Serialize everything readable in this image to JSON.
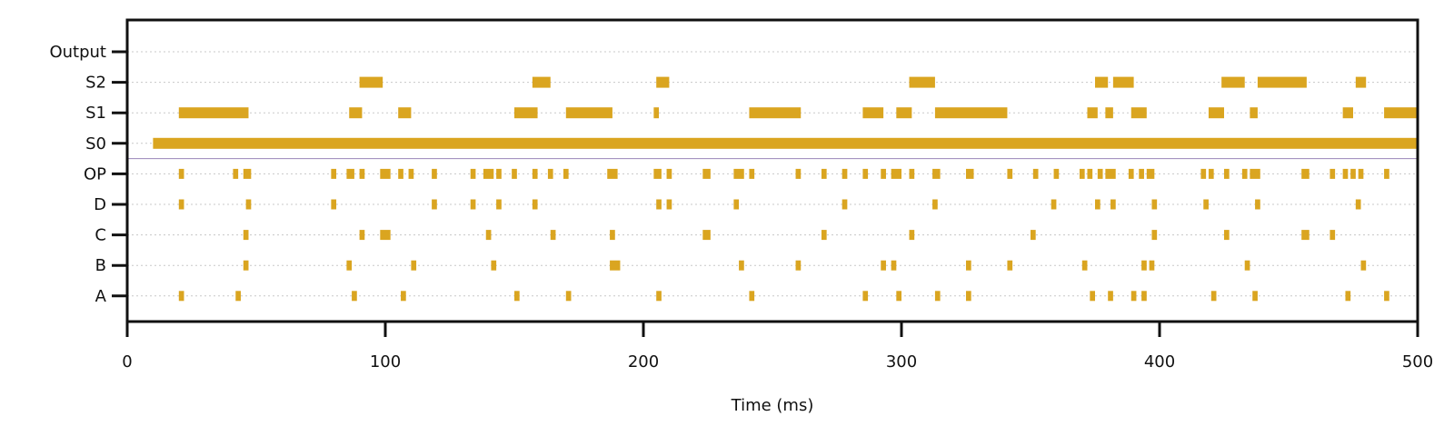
{
  "chart_data": {
    "type": "raster",
    "xlabel": "Time (ms)",
    "ylabel": "",
    "xlim": [
      0,
      500
    ],
    "xticks": [
      0,
      100,
      200,
      300,
      400,
      500
    ],
    "rows": [
      "A",
      "B",
      "C",
      "D",
      "OP",
      "S0",
      "S1",
      "S2",
      "Output"
    ],
    "grid": "dotted horizontal per row",
    "separator_after_row": "OP",
    "color": "#DAA520",
    "series": [
      {
        "name": "A",
        "intervals": [
          [
            20,
            22
          ],
          [
            42,
            44
          ],
          [
            87,
            89
          ],
          [
            106,
            108
          ],
          [
            150,
            152
          ],
          [
            170,
            172
          ],
          [
            205,
            207
          ],
          [
            241,
            243
          ],
          [
            285,
            287
          ],
          [
            298,
            300
          ],
          [
            313,
            315
          ],
          [
            325,
            327
          ],
          [
            373,
            375
          ],
          [
            380,
            382
          ],
          [
            389,
            391
          ],
          [
            393,
            395
          ],
          [
            420,
            422
          ],
          [
            436,
            438
          ],
          [
            472,
            474
          ],
          [
            487,
            489
          ]
        ]
      },
      {
        "name": "B",
        "intervals": [
          [
            45,
            47
          ],
          [
            85,
            87
          ],
          [
            110,
            112
          ],
          [
            141,
            143
          ],
          [
            187,
            191
          ],
          [
            237,
            239
          ],
          [
            259,
            261
          ],
          [
            292,
            294
          ],
          [
            296,
            298
          ],
          [
            325,
            327
          ],
          [
            341,
            343
          ],
          [
            370,
            372
          ],
          [
            393,
            395
          ],
          [
            396,
            398
          ],
          [
            433,
            435
          ],
          [
            478,
            480
          ]
        ]
      },
      {
        "name": "C",
        "intervals": [
          [
            45,
            47
          ],
          [
            90,
            92
          ],
          [
            98,
            102
          ],
          [
            139,
            141
          ],
          [
            164,
            166
          ],
          [
            187,
            189
          ],
          [
            223,
            226
          ],
          [
            269,
            271
          ],
          [
            303,
            305
          ],
          [
            350,
            352
          ],
          [
            397,
            399
          ],
          [
            425,
            427
          ],
          [
            455,
            458
          ],
          [
            466,
            468
          ]
        ]
      },
      {
        "name": "D",
        "intervals": [
          [
            20,
            22
          ],
          [
            46,
            48
          ],
          [
            79,
            81
          ],
          [
            118,
            120
          ],
          [
            133,
            135
          ],
          [
            143,
            145
          ],
          [
            157,
            159
          ],
          [
            205,
            207
          ],
          [
            209,
            211
          ],
          [
            235,
            237
          ],
          [
            277,
            279
          ],
          [
            312,
            314
          ],
          [
            358,
            360
          ],
          [
            375,
            377
          ],
          [
            381,
            383
          ],
          [
            397,
            399
          ],
          [
            417,
            419
          ],
          [
            437,
            439
          ],
          [
            476,
            478
          ]
        ]
      },
      {
        "name": "OP",
        "intervals": [
          [
            20,
            22
          ],
          [
            41,
            43
          ],
          [
            45,
            48
          ],
          [
            79,
            81
          ],
          [
            85,
            88
          ],
          [
            90,
            92
          ],
          [
            98,
            102
          ],
          [
            105,
            107
          ],
          [
            109,
            111
          ],
          [
            118,
            120
          ],
          [
            133,
            135
          ],
          [
            138,
            142
          ],
          [
            143,
            145
          ],
          [
            149,
            151
          ],
          [
            157,
            159
          ],
          [
            163,
            165
          ],
          [
            169,
            171
          ],
          [
            186,
            190
          ],
          [
            204,
            207
          ],
          [
            209,
            211
          ],
          [
            223,
            226
          ],
          [
            235,
            239
          ],
          [
            241,
            243
          ],
          [
            259,
            261
          ],
          [
            269,
            271
          ],
          [
            277,
            279
          ],
          [
            285,
            287
          ],
          [
            292,
            294
          ],
          [
            296,
            300
          ],
          [
            303,
            305
          ],
          [
            312,
            315
          ],
          [
            325,
            328
          ],
          [
            341,
            343
          ],
          [
            351,
            353
          ],
          [
            359,
            361
          ],
          [
            369,
            371
          ],
          [
            372,
            374
          ],
          [
            376,
            378
          ],
          [
            379,
            383
          ],
          [
            388,
            390
          ],
          [
            392,
            394
          ],
          [
            395,
            398
          ],
          [
            416,
            418
          ],
          [
            419,
            421
          ],
          [
            425,
            427
          ],
          [
            432,
            434
          ],
          [
            435,
            439
          ],
          [
            455,
            458
          ],
          [
            466,
            468
          ],
          [
            471,
            473
          ],
          [
            474,
            476
          ],
          [
            477,
            479
          ],
          [
            487,
            489
          ]
        ]
      },
      {
        "name": "S0",
        "intervals": [
          [
            10,
            500
          ]
        ]
      },
      {
        "name": "S1",
        "intervals": [
          [
            20,
            47
          ],
          [
            86,
            91
          ],
          [
            105,
            110
          ],
          [
            150,
            159
          ],
          [
            170,
            188
          ],
          [
            204,
            206
          ],
          [
            241,
            261
          ],
          [
            285,
            293
          ],
          [
            298,
            304
          ],
          [
            313,
            341
          ],
          [
            372,
            376
          ],
          [
            379,
            382
          ],
          [
            389,
            395
          ],
          [
            419,
            425
          ],
          [
            435,
            438
          ],
          [
            471,
            475
          ],
          [
            487,
            500
          ]
        ]
      },
      {
        "name": "S2",
        "intervals": [
          [
            90,
            99
          ],
          [
            157,
            164
          ],
          [
            205,
            210
          ],
          [
            303,
            313
          ],
          [
            375,
            380
          ],
          [
            382,
            390
          ],
          [
            424,
            433
          ],
          [
            438,
            457
          ],
          [
            476,
            480
          ]
        ]
      },
      {
        "name": "Output",
        "intervals": []
      }
    ]
  }
}
